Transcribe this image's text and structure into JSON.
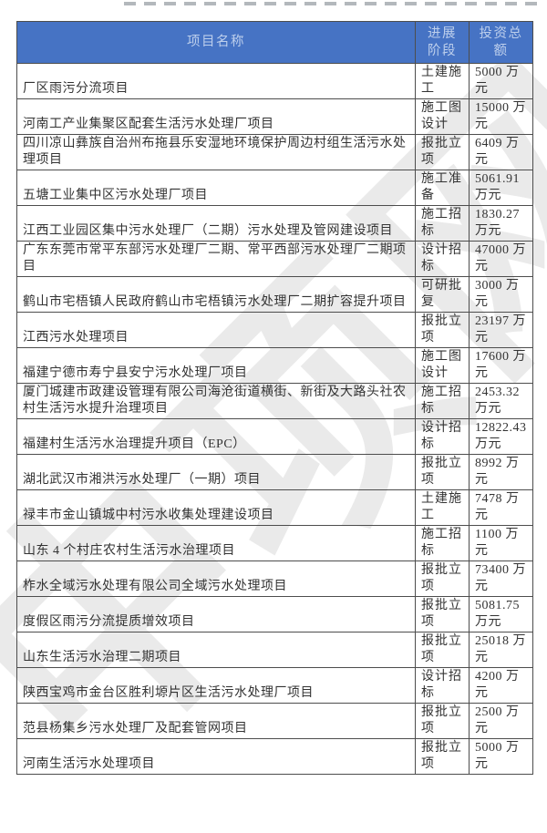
{
  "theme": {
    "header_bg": "#4673c4",
    "header_text": "#bdcfec",
    "border": "#4d4d4d",
    "text": "#333333",
    "watermark_color": "#d9d9d9"
  },
  "watermark": {
    "text": "中项网"
  },
  "table": {
    "columns": [
      {
        "label": "项目名称"
      },
      {
        "label": "进展\n阶段"
      },
      {
        "label": "投资总\n额"
      }
    ],
    "rows": [
      {
        "name": "厂区雨污分流项目",
        "stage": "土建施工",
        "investment": "5000 万元"
      },
      {
        "name": "河南工产业集聚区配套生活污水处理厂项目",
        "stage": "施工图设计",
        "investment": "15000 万元"
      },
      {
        "name": "四川凉山彝族自治州布拖县乐安湿地环境保护周边村组生活污水处理项目",
        "stage": "报批立项",
        "investment": "6409 万元"
      },
      {
        "name": "五塘工业集中区污水处理厂项目",
        "stage": "施工准备",
        "investment": "5061.91 万元"
      },
      {
        "name": "江西工业园区集中污水处理厂（二期）污水处理及管网建设项目",
        "stage": "施工招标",
        "investment": "1830.27 万元"
      },
      {
        "name": "广东东莞市常平东部污水处理厂二期、常平西部污水处理厂二期项目",
        "stage": "设计招标",
        "investment": "47000 万元"
      },
      {
        "name": "鹤山市宅梧镇人民政府鹤山市宅梧镇污水处理厂二期扩容提升项目",
        "stage": "可研批复",
        "investment": "3000 万元"
      },
      {
        "name": "江西污水处理项目",
        "stage": "报批立项",
        "investment": "23197 万元"
      },
      {
        "name": "福建宁德市寿宁县安宁污水处理厂项目",
        "stage": "施工图设计",
        "investment": "17600 万元"
      },
      {
        "name": "厦门城建市政建设管理有限公司海沧街道横街、新街及大路头社农村生活污水提升治理项目",
        "stage": "施工招标",
        "investment": "2453.32 万元"
      },
      {
        "name": "福建村生活污水治理提升项目（EPC）",
        "stage": "设计招标",
        "investment": "12822.43 万元"
      },
      {
        "name": "湖北武汉市湘洪污水处理厂（一期）项目",
        "stage": "报批立项",
        "investment": "8992 万元"
      },
      {
        "name": "禄丰市金山镇城中村污水收集处理建设项目",
        "stage": "土建施工",
        "investment": "7478 万元"
      },
      {
        "name": "山东 4 个村庄农村生活污水治理项目",
        "stage": "施工招标",
        "investment": "1100 万元"
      },
      {
        "name": "柞水全域污水处理有限公司全域污水处理项目",
        "stage": "报批立项",
        "investment": "73400 万元"
      },
      {
        "name": "度假区雨污分流提质增效项目",
        "stage": "报批立项",
        "investment": "5081.75 万元"
      },
      {
        "name": "山东生活污水治理二期项目",
        "stage": "报批立项",
        "investment": "25018 万元"
      },
      {
        "name": "陕西宝鸡市金台区胜利塬片区生活污水处理厂项目",
        "stage": "设计招标",
        "investment": "4200 万元"
      },
      {
        "name": "范县杨集乡污水处理厂及配套管网项目",
        "stage": "报批立项",
        "investment": "2500 万元"
      },
      {
        "name": "河南生活污水处理项目",
        "stage": "报批立项",
        "investment": "5000 万元"
      }
    ]
  }
}
